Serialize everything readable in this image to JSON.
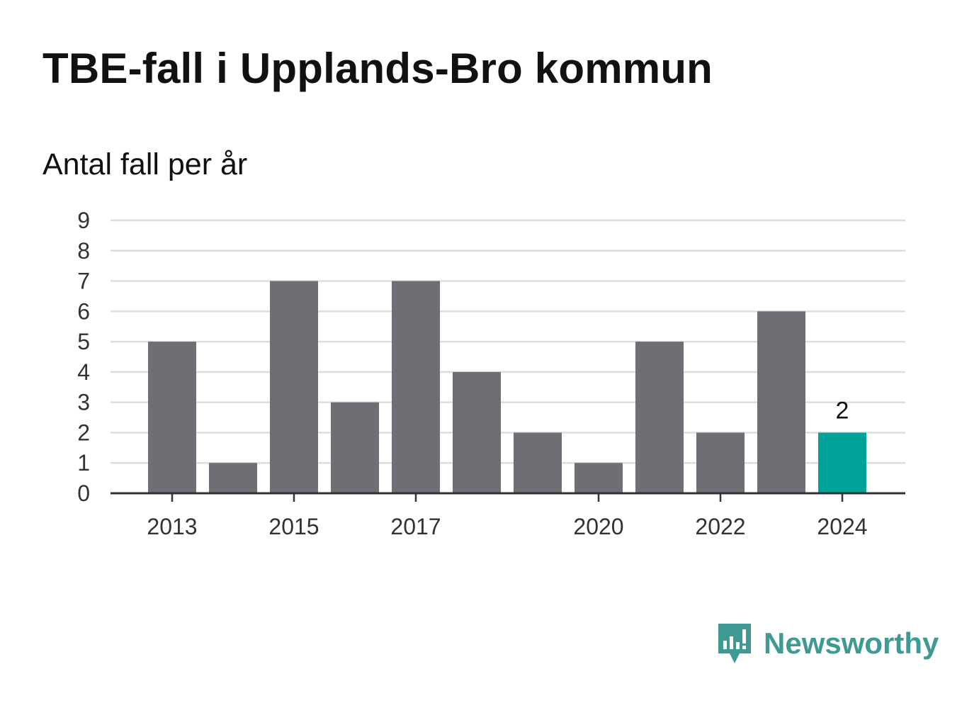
{
  "title": "TBE-fall i Upplands-Bro kommun",
  "subtitle": "Antal fall per år",
  "brand": {
    "name": "Newsworthy",
    "color": "#3f9a94",
    "icon": "newsworthy-logo-icon"
  },
  "colors": {
    "bar": "#6f6e74",
    "highlight": "#00a39a",
    "grid": "#dddddd",
    "axis": "#333333"
  },
  "chart_data": {
    "type": "bar",
    "categories": [
      "2013",
      "2014",
      "2015",
      "2016",
      "2017",
      "2018",
      "2019",
      "2020",
      "2021",
      "2022",
      "2023",
      "2024"
    ],
    "values": [
      5,
      1,
      7,
      3,
      7,
      4,
      2,
      1,
      5,
      2,
      6,
      2
    ],
    "x_tick_labels": [
      "2013",
      "2015",
      "2017",
      "2020",
      "2022",
      "2024"
    ],
    "y_ticks": [
      0,
      1,
      2,
      3,
      4,
      5,
      6,
      7,
      8,
      9
    ],
    "ylim": [
      0,
      9
    ],
    "highlight_category": "2024",
    "data_labels": [
      {
        "category": "2024",
        "text": "2"
      }
    ],
    "grid": true,
    "title": "TBE-fall i Upplands-Bro kommun",
    "ylabel": "Antal fall per år",
    "xlabel": ""
  }
}
